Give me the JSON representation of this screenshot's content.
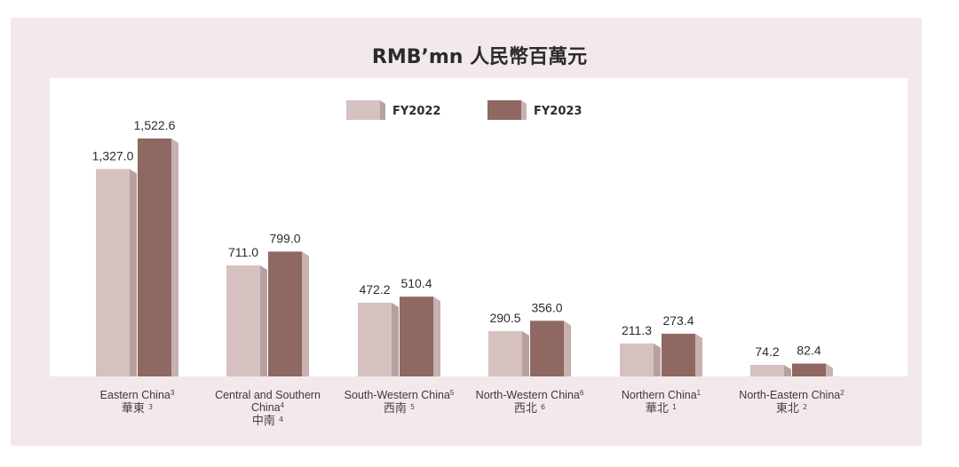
{
  "chart_data": {
    "type": "bar",
    "title": "RMB’mn 人民幣百萬元",
    "categories": [
      {
        "label": "Eastern China",
        "sup": "3",
        "zh": "華東",
        "zh_sup": "3"
      },
      {
        "label": "Central and Southern China",
        "sup": "4",
        "zh": "中南",
        "zh_sup": "4"
      },
      {
        "label": "South-Western China",
        "sup": "5",
        "zh": "西南",
        "zh_sup": "5"
      },
      {
        "label": "North-Western China",
        "sup": "6",
        "zh": "西北",
        "zh_sup": "6"
      },
      {
        "label": "Northern China",
        "sup": "1",
        "zh": "華北",
        "zh_sup": "1"
      },
      {
        "label": "North-Eastern China",
        "sup": "2",
        "zh": "東北",
        "zh_sup": "2"
      }
    ],
    "series": [
      {
        "name": "FY2022",
        "values": [
          1327.0,
          711.0,
          472.2,
          290.5,
          211.3,
          74.2
        ],
        "data_labels": [
          "1,327.0",
          "711.0",
          "472.2",
          "290.5",
          "211.3",
          "74.2"
        ],
        "color": "#d6c1c1",
        "side_color": "#b9a0a0"
      },
      {
        "name": "FY2023",
        "values": [
          1522.6,
          799.0,
          510.4,
          356.0,
          273.4,
          82.4
        ],
        "data_labels": [
          "1,522.6",
          "799.0",
          "510.4",
          "356.0",
          "273.4",
          "82.4"
        ],
        "color": "#8e6861",
        "side_color": "#c7b1b1"
      }
    ],
    "legend_position": "top-center",
    "grid": false,
    "ylim": [
      0,
      1700
    ]
  }
}
